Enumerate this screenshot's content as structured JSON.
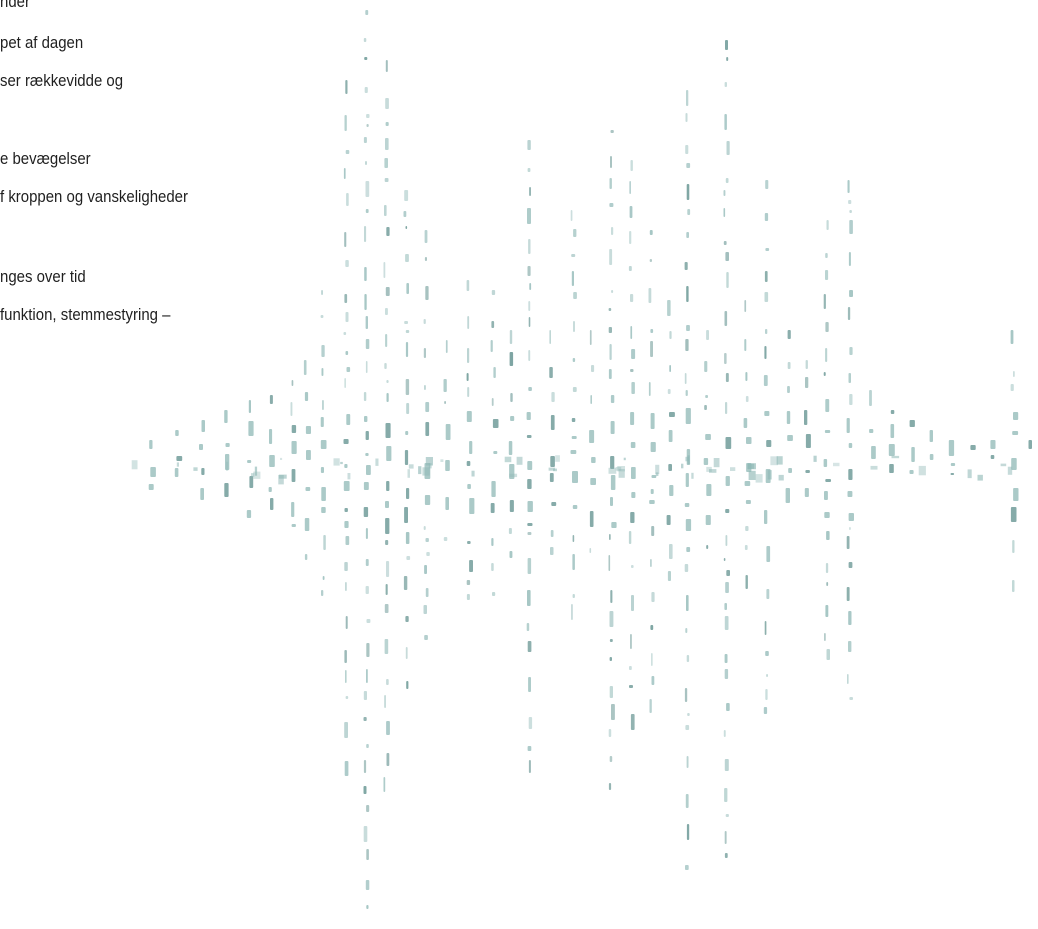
{
  "text_lines": [
    "nder",
    "pet af dagen",
    "ser rækkevidde og",
    "e bevægelser",
    "f kroppen og vanskeligheder",
    "nges over tid",
    "funktion, stemmestyring –"
  ],
  "colors": {
    "background": "#ffffff",
    "text": "#1f1f1f",
    "wave": "#8fb8b6",
    "wave_dark": "#5e8f8c"
  }
}
